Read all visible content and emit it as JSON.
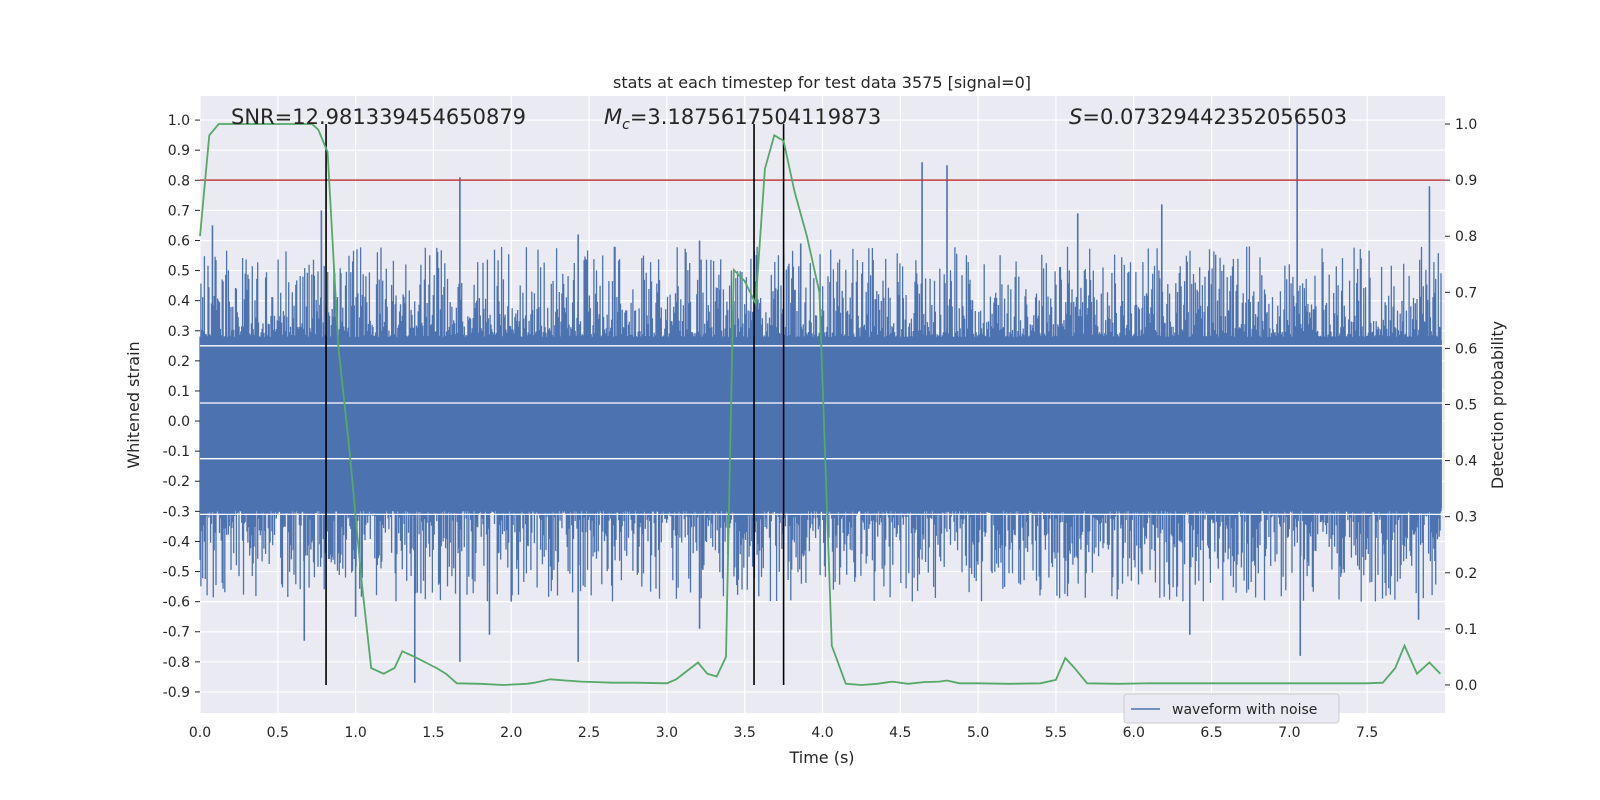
{
  "chart_data": {
    "type": "line",
    "title": "stats at each timestep for test data 3575 [signal=0]",
    "xlabel": "Time (s)",
    "ylabel": "Whitened strain",
    "y2label": "Detection probability",
    "xlim": [
      0.0,
      8.0
    ],
    "ylim": [
      -0.97,
      1.08
    ],
    "y2lim": [
      -0.05,
      1.05
    ],
    "x_ticks": [
      "0.0",
      "0.5",
      "1.0",
      "1.5",
      "2.0",
      "2.5",
      "3.0",
      "3.5",
      "4.0",
      "4.5",
      "5.0",
      "5.5",
      "6.0",
      "6.5",
      "7.0",
      "7.5"
    ],
    "y_ticks": [
      "1.0",
      "0.9",
      "0.8",
      "0.7",
      "0.6",
      "0.5",
      "0.4",
      "0.3",
      "0.2",
      "0.1",
      "0.0",
      "-0.1",
      "-0.2",
      "-0.3",
      "-0.4",
      "-0.5",
      "-0.6",
      "-0.7",
      "-0.8",
      "-0.9"
    ],
    "y2_ticks": [
      "1.0",
      "0.9",
      "0.8",
      "0.7",
      "0.6",
      "0.5",
      "0.4",
      "0.3",
      "0.2",
      "0.1",
      "0.0"
    ],
    "grid": true,
    "legend": {
      "placement": "bottom-right",
      "entries": [
        "waveform with noise"
      ]
    },
    "annotations": {
      "snr": "SNR=12.981339454650879",
      "mc_symbol": "M",
      "mc_sub": "c",
      "mc_value": "=3.1875617504119873",
      "s_symbol": "S",
      "s_value": "=0.07329442352056503"
    },
    "threshold": {
      "y2": 0.9,
      "color": "#c03d3e"
    },
    "vertical_lines_x": [
      0.81,
      3.56,
      3.75
    ],
    "waveform": {
      "name": "waveform with noise",
      "color": "#4c72b0",
      "spikes": [
        {
          "x": 1.67,
          "y": 0.81
        },
        {
          "x": 0.78,
          "y": 0.7
        },
        {
          "x": 0.08,
          "y": 0.65
        },
        {
          "x": 2.43,
          "y": 0.62
        },
        {
          "x": 3.21,
          "y": 0.6
        },
        {
          "x": 4.64,
          "y": 0.86
        },
        {
          "x": 4.8,
          "y": 0.85
        },
        {
          "x": 7.05,
          "y": 1.0
        },
        {
          "x": 7.9,
          "y": 0.78
        },
        {
          "x": 5.64,
          "y": 0.69
        },
        {
          "x": 6.18,
          "y": 0.72
        },
        {
          "x": 3.86,
          "y": 0.59
        },
        {
          "x": 1.38,
          "y": -0.87
        },
        {
          "x": 0.67,
          "y": -0.73
        },
        {
          "x": 1.67,
          "y": -0.8
        },
        {
          "x": 2.43,
          "y": -0.8
        },
        {
          "x": 7.07,
          "y": -0.78
        },
        {
          "x": 1.86,
          "y": -0.71
        },
        {
          "x": 3.21,
          "y": -0.69
        },
        {
          "x": 7.83,
          "y": -0.66
        },
        {
          "x": 1.0,
          "y": -0.65
        },
        {
          "x": 6.36,
          "y": -0.71
        },
        {
          "x": 2.0,
          "y": -0.6
        }
      ]
    },
    "detection_probability": {
      "color": "#55a868",
      "x": [
        0.0,
        0.06,
        0.12,
        0.25,
        0.5,
        0.72,
        0.76,
        0.82,
        0.89,
        0.96,
        1.04,
        1.1,
        1.18,
        1.25,
        1.3,
        1.38,
        1.45,
        1.52,
        1.58,
        1.65,
        1.8,
        1.95,
        2.1,
        2.15,
        2.25,
        2.35,
        2.45,
        2.55,
        2.65,
        2.8,
        3.0,
        3.06,
        3.13,
        3.2,
        3.26,
        3.32,
        3.38,
        3.43,
        3.5,
        3.57,
        3.63,
        3.69,
        3.75,
        3.82,
        3.9,
        3.98,
        4.06,
        4.15,
        4.25,
        4.35,
        4.45,
        4.55,
        4.65,
        4.75,
        4.8,
        4.88,
        5.0,
        5.2,
        5.4,
        5.5,
        5.56,
        5.62,
        5.7,
        5.9,
        6.1,
        6.5,
        6.9,
        7.2,
        7.5,
        7.6,
        7.68,
        7.74,
        7.82,
        7.9,
        7.97
      ],
      "y": [
        0.8,
        0.98,
        1.0,
        1.0,
        1.0,
        1.0,
        0.99,
        0.95,
        0.6,
        0.42,
        0.18,
        0.03,
        0.02,
        0.03,
        0.06,
        0.05,
        0.04,
        0.03,
        0.02,
        0.003,
        0.002,
        0.0,
        0.002,
        0.004,
        0.01,
        0.008,
        0.006,
        0.005,
        0.004,
        0.004,
        0.003,
        0.01,
        0.025,
        0.04,
        0.02,
        0.015,
        0.05,
        0.74,
        0.72,
        0.68,
        0.92,
        0.98,
        0.97,
        0.88,
        0.8,
        0.7,
        0.07,
        0.002,
        0.0,
        0.002,
        0.006,
        0.002,
        0.005,
        0.006,
        0.008,
        0.003,
        0.003,
        0.002,
        0.003,
        0.009,
        0.048,
        0.03,
        0.003,
        0.002,
        0.003,
        0.003,
        0.003,
        0.003,
        0.003,
        0.004,
        0.03,
        0.07,
        0.02,
        0.04,
        0.02
      ]
    }
  }
}
